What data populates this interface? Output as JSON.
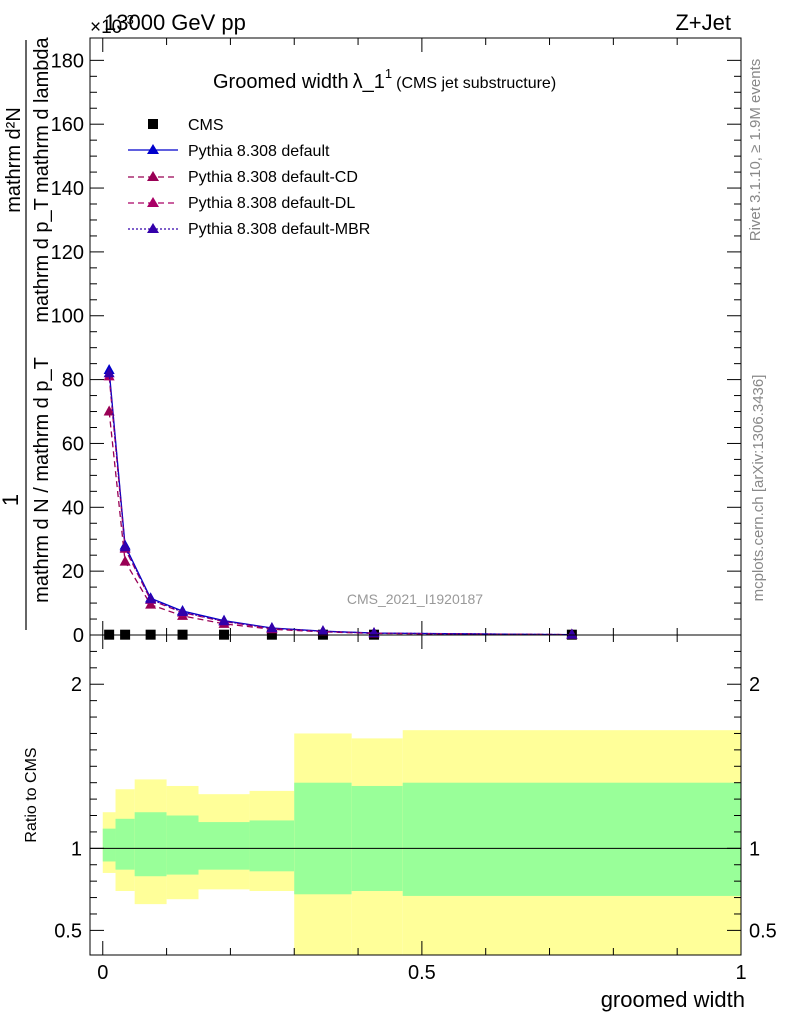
{
  "header": {
    "energy_label": "13000 GeV pp",
    "process_label": "Z+Jet",
    "exponent_label": "×10",
    "exponent_power": "-3"
  },
  "title": {
    "main": "Groomed width",
    "lambda": "λ_1",
    "sup": "1",
    "sub": "(CMS jet substructure)"
  },
  "side_labels": {
    "rivet": "Rivet 3.1.10, ≥ 1.9M events",
    "mcplots": "mcplots.cern.ch [arXiv:1306.3436]"
  },
  "watermark": "CMS_2021_I1920187",
  "y_label_top": {
    "numerator": "mathrm d²N",
    "denominator_line1": "mathrm d p_T mathrm d lambda",
    "prefix": "1",
    "prefix_denominator": "mathrm d N / mathrm d p_T"
  },
  "y_label_bottom": "Ratio to CMS",
  "x_label": "groomed width",
  "colors": {
    "cms": "#000000",
    "default": "#0000cc",
    "cd": "#990055",
    "dl": "#aa0066",
    "mbr": "#3300aa",
    "band_outer": "#ffff99",
    "band_inner": "#99ff99"
  },
  "chart_data": [
    {
      "type": "line",
      "panel": "main",
      "xlim": [
        -0.02,
        1.0
      ],
      "ylim": [
        0,
        187
      ],
      "yticks": [
        0,
        20,
        40,
        60,
        80,
        100,
        120,
        140,
        160,
        180
      ],
      "bin_centers": [
        0.01,
        0.035,
        0.075,
        0.125,
        0.19,
        0.265,
        0.345,
        0.425,
        0.735
      ],
      "series": [
        {
          "name": "CMS",
          "style": "marker",
          "values": [
            0.1,
            0.1,
            0.1,
            0.1,
            0.1,
            0.1,
            0.1,
            0.1,
            0.1
          ]
        },
        {
          "name": "Pythia 8.308 default",
          "style": "solid",
          "values": [
            83,
            28,
            11.5,
            7.5,
            4.5,
            2.2,
            1.2,
            0.6,
            0.1
          ]
        },
        {
          "name": "Pythia 8.308 default-CD",
          "style": "dashed",
          "values": [
            70,
            23,
            9.5,
            6,
            3.5,
            1.8,
            1.0,
            0.5,
            0.1
          ]
        },
        {
          "name": "Pythia 8.308 default-DL",
          "style": "dashed",
          "values": [
            81,
            27,
            11,
            7,
            4.2,
            2.0,
            1.1,
            0.55,
            0.1
          ]
        },
        {
          "name": "Pythia 8.308 default-MBR",
          "style": "dotted",
          "values": [
            82,
            27.5,
            11.2,
            7.2,
            4.3,
            2.1,
            1.15,
            0.58,
            0.1
          ]
        }
      ]
    },
    {
      "type": "area",
      "panel": "ratio",
      "xlim": [
        -0.02,
        1.0
      ],
      "ylim": [
        0.35,
        2.3
      ],
      "yticks": [
        0.5,
        1,
        2
      ],
      "xticks": [
        0,
        0.5,
        1
      ],
      "xtick_labels": [
        "0",
        "0.5",
        "1"
      ],
      "bin_edges": [
        0,
        0.02,
        0.05,
        0.1,
        0.15,
        0.23,
        0.3,
        0.39,
        0.47,
        1.0
      ],
      "band_outer_hi": [
        1.22,
        1.36,
        1.42,
        1.38,
        1.33,
        1.35,
        1.7,
        1.67,
        1.72
      ],
      "band_outer_lo": [
        0.85,
        0.74,
        0.66,
        0.69,
        0.75,
        0.74,
        0.35,
        0.35,
        0.35
      ],
      "band_inner_hi": [
        1.12,
        1.18,
        1.22,
        1.2,
        1.16,
        1.17,
        1.4,
        1.38,
        1.4
      ],
      "band_inner_lo": [
        0.92,
        0.87,
        0.83,
        0.84,
        0.87,
        0.86,
        0.72,
        0.74,
        0.71
      ],
      "reference": 1.0
    }
  ]
}
